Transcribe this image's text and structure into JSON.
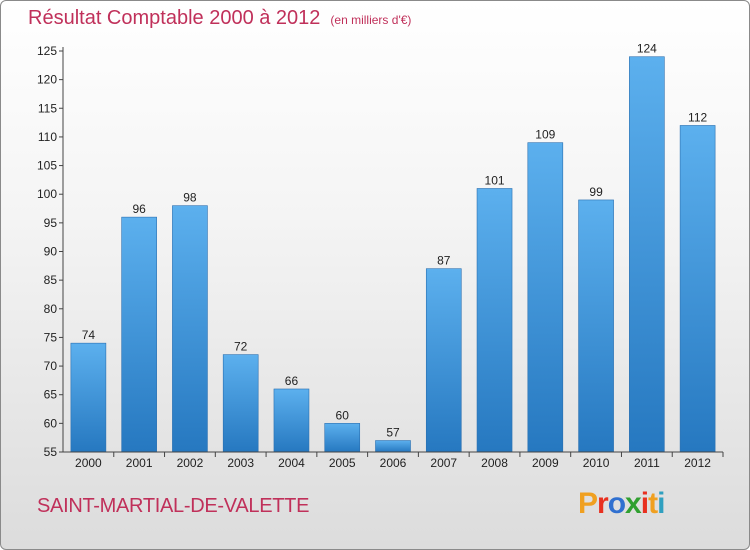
{
  "header": {
    "title": "Résultat Comptable 2000 à 2012",
    "subtitle": "(en milliers d'€)"
  },
  "footer": {
    "place": "SAINT-MARTIAL-DE-VALETTE",
    "logo_letters": [
      "P",
      "r",
      "o",
      "x",
      "i",
      "t",
      "i"
    ],
    "logo_colors": [
      "#f0a020",
      "#e83020",
      "#3070d0",
      "#30a030",
      "#e83020",
      "#f0a020",
      "#30a0c0"
    ]
  },
  "chart_data": {
    "type": "bar",
    "categories": [
      "2000",
      "2001",
      "2002",
      "2003",
      "2004",
      "2005",
      "2006",
      "2007",
      "2008",
      "2009",
      "2010",
      "2011",
      "2012"
    ],
    "values": [
      74,
      96,
      98,
      72,
      66,
      60,
      57,
      87,
      101,
      109,
      99,
      124,
      112
    ],
    "title": "Résultat Comptable 2000 à 2012",
    "ylim": [
      55,
      125
    ],
    "yticks": [
      55,
      60,
      65,
      70,
      75,
      80,
      85,
      90,
      95,
      100,
      105,
      110,
      115,
      120,
      125
    ],
    "grid": false,
    "bar_color": "#3a8fd6"
  }
}
